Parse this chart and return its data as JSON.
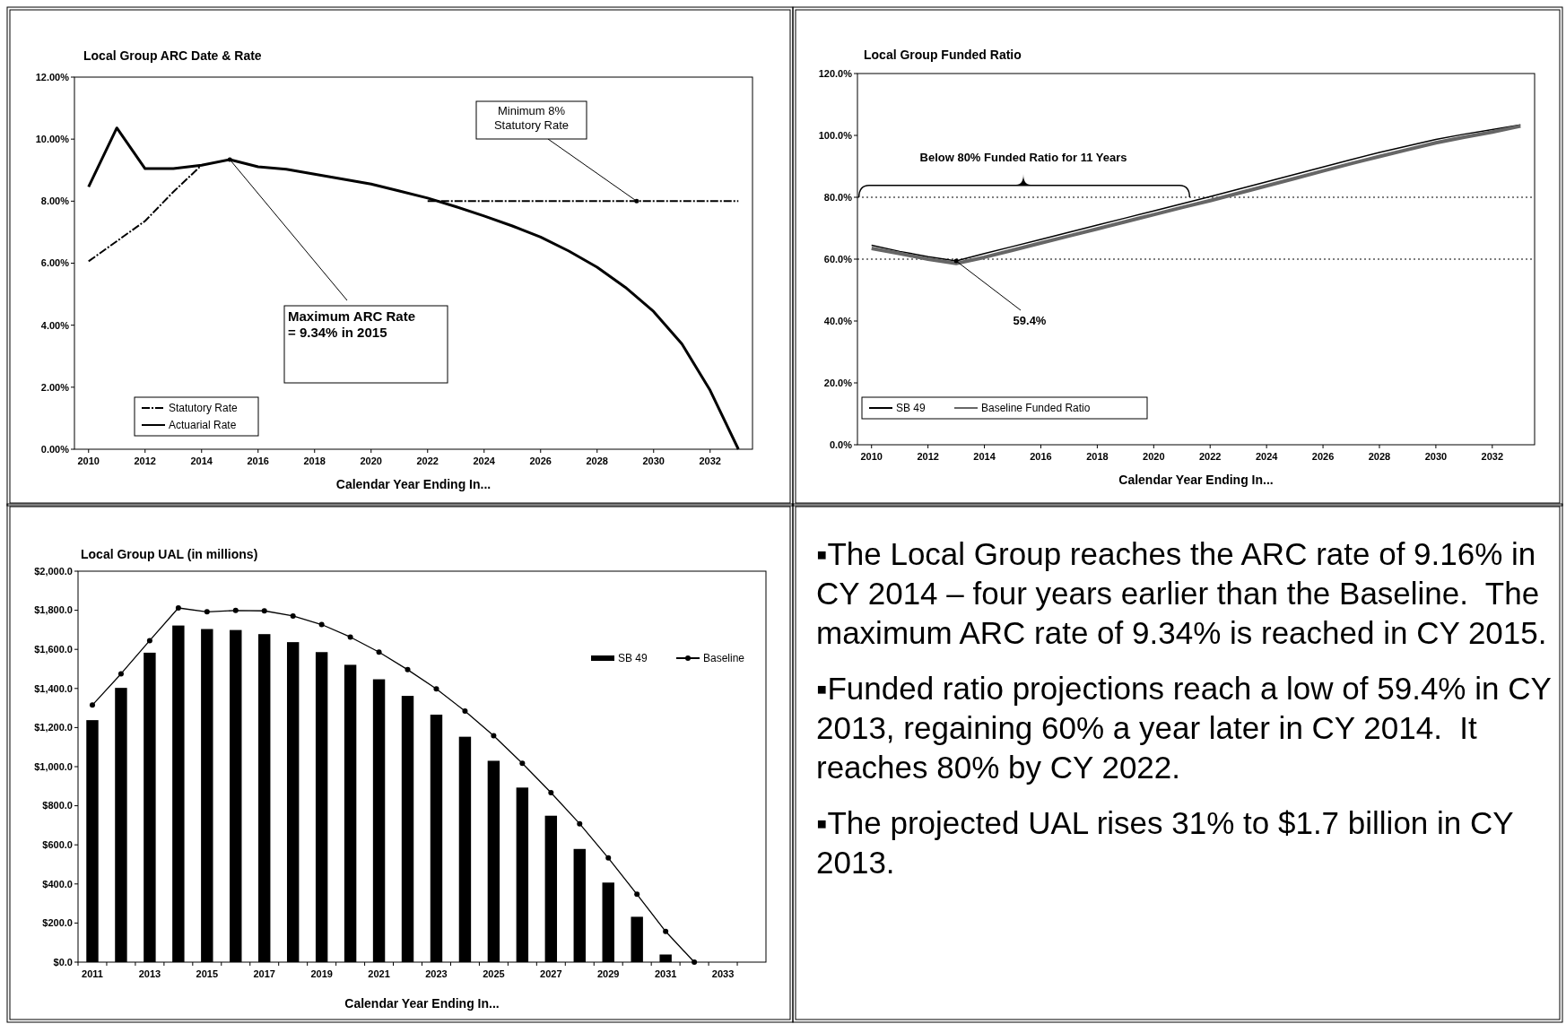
{
  "chart_data": [
    {
      "type": "line",
      "title": "Local Group ARC Date & Rate",
      "xlabel": "Calendar Year Ending In...",
      "x": [
        2010,
        2011,
        2012,
        2013,
        2014,
        2015,
        2016,
        2017,
        2018,
        2019,
        2020,
        2021,
        2022,
        2023,
        2024,
        2025,
        2026,
        2027,
        2028,
        2029,
        2030,
        2031,
        2032,
        2033
      ],
      "xlim": [
        2009.5,
        2033.5
      ],
      "xticks": [
        2010,
        2012,
        2014,
        2016,
        2018,
        2020,
        2022,
        2024,
        2026,
        2028,
        2030,
        2032
      ],
      "ylim": [
        0,
        12
      ],
      "yticks": [
        {
          "value": 0,
          "label": "0.00%"
        },
        {
          "value": 2,
          "label": "2.00%"
        },
        {
          "value": 4,
          "label": "4.00%"
        },
        {
          "value": 6,
          "label": "6.00%"
        },
        {
          "value": 8,
          "label": "8.00%"
        },
        {
          "value": 10,
          "label": "10.00%"
        },
        {
          "value": 12,
          "label": "12.00%"
        }
      ],
      "legend": "bottom left",
      "grid": false,
      "series": [
        {
          "name": "Statutory Rate",
          "color": "#000000",
          "line_style": "dashed",
          "values": [
            6.06,
            6.71,
            7.36,
            8.3,
            9.16,
            null,
            null,
            null,
            null,
            null,
            null,
            null,
            8.0,
            8.0,
            8.0,
            8.0,
            8.0,
            8.0,
            8.0,
            8.0,
            8.0,
            8.0,
            8.0,
            8.0
          ]
        },
        {
          "name": "Actuarial Rate",
          "color": "#000000",
          "line_style": "solid",
          "values": [
            8.46,
            10.36,
            9.05,
            9.05,
            9.16,
            9.34,
            9.11,
            9.03,
            8.87,
            8.71,
            8.55,
            8.33,
            8.1,
            7.82,
            7.52,
            7.2,
            6.84,
            6.39,
            5.87,
            5.22,
            4.44,
            3.4,
            1.9,
            0
          ]
        }
      ],
      "annotations": [
        {
          "text": "Minimum 8%\nStatutory Rate",
          "x": 2029.4,
          "y": 8
        },
        {
          "text": "Maximum ARC Rate\n= 9.34% in 2015",
          "x": 2015,
          "y": 9.34
        }
      ]
    },
    {
      "type": "line",
      "title": "Local Group Funded Ratio",
      "xlabel": "Calendar Year Ending In...",
      "x": [
        2010,
        2011,
        2012,
        2013,
        2014,
        2015,
        2016,
        2017,
        2018,
        2019,
        2020,
        2021,
        2022,
        2023,
        2024,
        2025,
        2026,
        2027,
        2028,
        2029,
        2030,
        2031,
        2032,
        2033
      ],
      "xlim": [
        2009.5,
        2033.5
      ],
      "xticks": [
        2010,
        2012,
        2014,
        2016,
        2018,
        2020,
        2022,
        2024,
        2026,
        2028,
        2030,
        2032
      ],
      "ylim": [
        0,
        120
      ],
      "yticks": [
        {
          "value": 0,
          "label": "0.0%"
        },
        {
          "value": 20,
          "label": "20.0%"
        },
        {
          "value": 40,
          "label": "40.0%"
        },
        {
          "value": 60,
          "label": "60.0%"
        },
        {
          "value": 80,
          "label": "80.0%"
        },
        {
          "value": 100,
          "label": "100.0%"
        },
        {
          "value": 120,
          "label": "120.0%"
        }
      ],
      "legend": "bottom left",
      "grid": false,
      "series": [
        {
          "name": "SB 49",
          "color": "#000000",
          "values": [
            64.5,
            62.5,
            60.8,
            59.4,
            61.8,
            64.1,
            66.4,
            68.7,
            71.0,
            73.3,
            75.6,
            77.9,
            80.2,
            82.6,
            85.0,
            87.4,
            89.8,
            92.2,
            94.5,
            96.6,
            98.7,
            100.4,
            101.9,
            103.4
          ]
        },
        {
          "name": "Baseline Funded Ratio",
          "color": "#666666",
          "values": [
            63.5,
            61.8,
            60.0,
            58.6,
            60.6,
            62.9,
            65.2,
            67.5,
            69.8,
            72.1,
            74.4,
            76.7,
            78.9,
            81.3,
            83.7,
            86.1,
            88.5,
            90.9,
            93.2,
            95.4,
            97.6,
            99.4,
            101.1,
            103.0
          ]
        }
      ],
      "ref_lines": [
        {
          "axis": "y",
          "value": 80,
          "line_style": "dotted",
          "color": "#000000"
        },
        {
          "axis": "y",
          "value": 60,
          "line_style": "dotted",
          "color": "#000000"
        }
      ],
      "annotations": [
        "Below 80% Funded Ratio for 11 Years",
        {
          "text": "59.4%",
          "x": 2013,
          "y": 59.4
        }
      ]
    },
    {
      "type": "bar",
      "title": "Local Group UAL (in millions)",
      "xlabel": "Calendar Year Ending In...",
      "categories": [
        "2011",
        null,
        "2013",
        null,
        "2015",
        null,
        "2017",
        null,
        "2019",
        null,
        "2021",
        null,
        "2023",
        null,
        "2025",
        null,
        "2027",
        null,
        "2029",
        null,
        "2031",
        null,
        "2033",
        null
      ],
      "ylim": [
        0,
        2000
      ],
      "yticks": [
        {
          "value": 0,
          "label": "$0.0"
        },
        {
          "value": 200,
          "label": "$200.0"
        },
        {
          "value": 400,
          "label": "$400.0"
        },
        {
          "value": 600,
          "label": "$600.0"
        },
        {
          "value": 800,
          "label": "$800.0"
        },
        {
          "value": 1000,
          "label": "$1,000.0"
        },
        {
          "value": 1200,
          "label": "$1,200.0"
        },
        {
          "value": 1400,
          "label": "$1,400.0"
        },
        {
          "value": 1600,
          "label": "$1,600.0"
        },
        {
          "value": 1800,
          "label": "$1,800.0"
        },
        {
          "value": 2000,
          "label": "$2,000.0"
        }
      ],
      "legend": "top right",
      "grid": false,
      "series": [
        {
          "name": "SB 49",
          "type": "bar",
          "color": "#000000",
          "values": [
            1238,
            1403,
            1583,
            1722,
            1704,
            1699,
            1678,
            1637,
            1586,
            1521,
            1447,
            1362,
            1266,
            1153,
            1030,
            893,
            749,
            579,
            407,
            232,
            39,
            null,
            null,
            null
          ]
        },
        {
          "name": "Baseline",
          "type": "line",
          "color": "#000000",
          "marker": "circle",
          "values": [
            1315,
            1475,
            1645,
            1812,
            1792,
            1799,
            1797,
            1771,
            1727,
            1663,
            1586,
            1496,
            1398,
            1284,
            1158,
            1017,
            867,
            708,
            533,
            347,
            157,
            0,
            null,
            null
          ]
        }
      ]
    },
    {
      "type": "other",
      "annotations": [
        "▪The Local Group reaches the ARC rate of 9.16% in CY 2014 – four years earlier than the Baseline.  The maximum ARC rate of 9.34% is reached in CY 2015.",
        "▪Funded ratio projections reach a low of 59.4% in CY 2013, regaining 60% a year later in CY 2014.  It reaches 80% by CY 2022.",
        "▪The projected UAL rises 31% to $1.7 billion in CY 2013."
      ]
    }
  ]
}
